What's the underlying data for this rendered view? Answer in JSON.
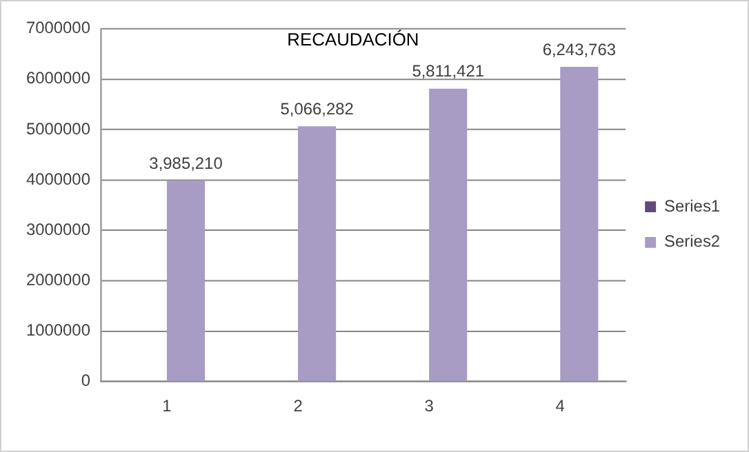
{
  "chart_data": {
    "type": "bar",
    "title": "RECAUDACIÓN",
    "categories": [
      "1",
      "2",
      "3",
      "4"
    ],
    "series": [
      {
        "name": "Series1",
        "color": "#604a7b",
        "values": [
          null,
          null,
          null,
          null
        ]
      },
      {
        "name": "Series2",
        "color": "#a89bc4",
        "values": [
          3985210,
          5066282,
          5811421,
          6243763
        ],
        "value_labels": [
          "3,985,210",
          "5,066,282",
          "5,811,421",
          "6,243,763"
        ]
      }
    ],
    "ylim": [
      0,
      7000000
    ],
    "yticks": [
      0,
      1000000,
      2000000,
      3000000,
      4000000,
      5000000,
      6000000,
      7000000
    ],
    "grid": "y",
    "legend": "right"
  }
}
